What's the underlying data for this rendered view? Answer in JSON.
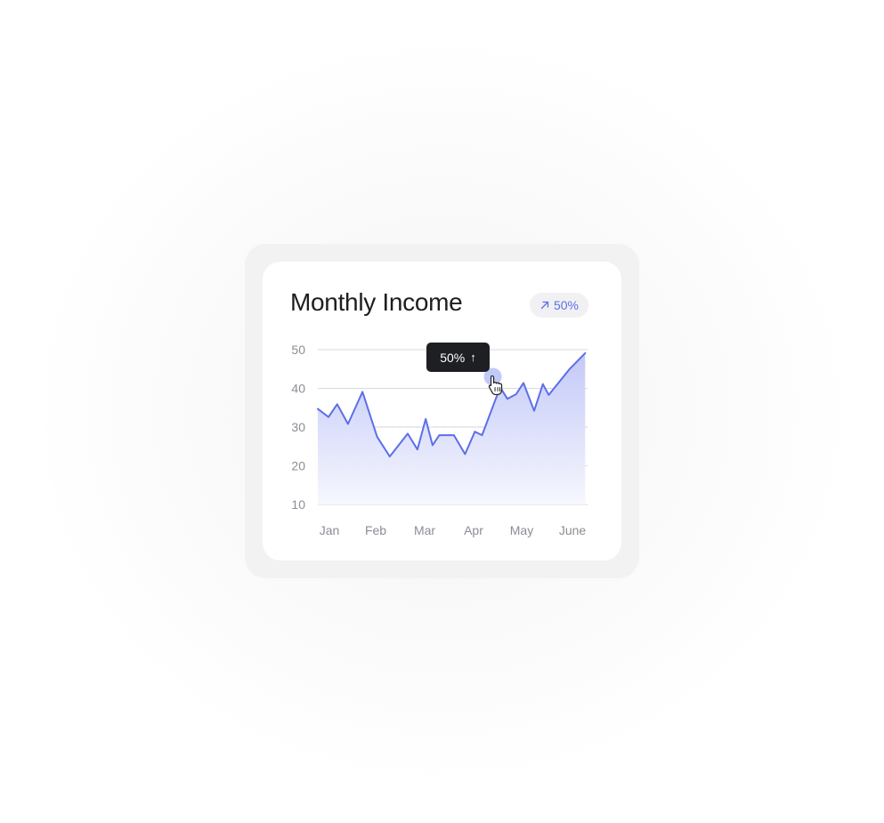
{
  "card": {
    "title": "Monthly Income",
    "badge": {
      "icon": "arrow-up-right-icon",
      "value": "50%"
    }
  },
  "tooltip": {
    "value": "50%",
    "arrow": "↑"
  },
  "colors": {
    "line": "#5c6fe8",
    "fill_top": "#c3c9f7",
    "fill_bottom": "#f6f7fe",
    "grid": "#d8d8de",
    "dashed": "#d0d0d6"
  },
  "chart_data": {
    "type": "area",
    "title": "Monthly Income",
    "xlabel": "",
    "ylabel": "",
    "categories": [
      "Jan",
      "Feb",
      "Mar",
      "Apr",
      "May",
      "June"
    ],
    "y_ticks": [
      50,
      40,
      30,
      20,
      10
    ],
    "ylim": [
      10,
      50
    ],
    "grid": true,
    "reference_line": {
      "y": 30,
      "style": "dashed"
    },
    "highlight": {
      "x": 3.6,
      "y": 43,
      "label": "50%"
    },
    "series": [
      {
        "points": [
          [
            0,
            34.7
          ],
          [
            0.22,
            32.6
          ],
          [
            0.4,
            35.9
          ],
          [
            0.62,
            30.8
          ],
          [
            0.92,
            39.1
          ],
          [
            1.22,
            27.5
          ],
          [
            1.48,
            22.4
          ],
          [
            1.85,
            28.3
          ],
          [
            2.05,
            24.2
          ],
          [
            2.22,
            32.1
          ],
          [
            2.36,
            25.3
          ],
          [
            2.5,
            27.9
          ],
          [
            2.8,
            27.9
          ],
          [
            3.03,
            23.0
          ],
          [
            3.23,
            28.8
          ],
          [
            3.38,
            27.9
          ],
          [
            3.75,
            40.3
          ],
          [
            3.9,
            37.3
          ],
          [
            4.08,
            38.5
          ],
          [
            4.23,
            41.4
          ],
          [
            4.45,
            34.2
          ],
          [
            4.63,
            41.1
          ],
          [
            4.75,
            38.3
          ],
          [
            5.18,
            45.0
          ],
          [
            5.5,
            49.1
          ]
        ]
      }
    ]
  }
}
